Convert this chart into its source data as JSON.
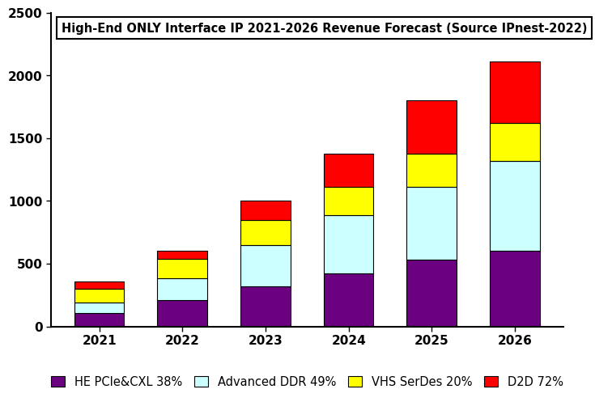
{
  "years": [
    "2021",
    "2022",
    "2023",
    "2024",
    "2025",
    "2026"
  ],
  "he_pcie_cxl": [
    110,
    210,
    320,
    425,
    530,
    600
  ],
  "advanced_ddr": [
    80,
    175,
    330,
    460,
    580,
    720
  ],
  "vhs_serdes": [
    110,
    155,
    200,
    230,
    265,
    300
  ],
  "d2d": [
    55,
    65,
    150,
    260,
    430,
    490
  ],
  "colors": {
    "he_pcie_cxl": "#6B0080",
    "advanced_ddr": "#CCFFFF",
    "vhs_serdes": "#FFFF00",
    "d2d": "#FF0000"
  },
  "legend_labels": [
    "HE PCIe&CXL 38%",
    "Advanced DDR 49%",
    "VHS SerDes 20%",
    "D2D 72%"
  ],
  "title": "High-End ONLY Interface IP 2021-2026 Revenue Forecast (Source IPnest-2022)",
  "ylim": [
    0,
    2500
  ],
  "yticks": [
    0,
    500,
    1000,
    1500,
    2000,
    2500
  ],
  "background_color": "#FFFFFF",
  "title_fontsize": 10.5,
  "tick_fontsize": 11,
  "legend_fontsize": 10.5,
  "bar_width": 0.6
}
